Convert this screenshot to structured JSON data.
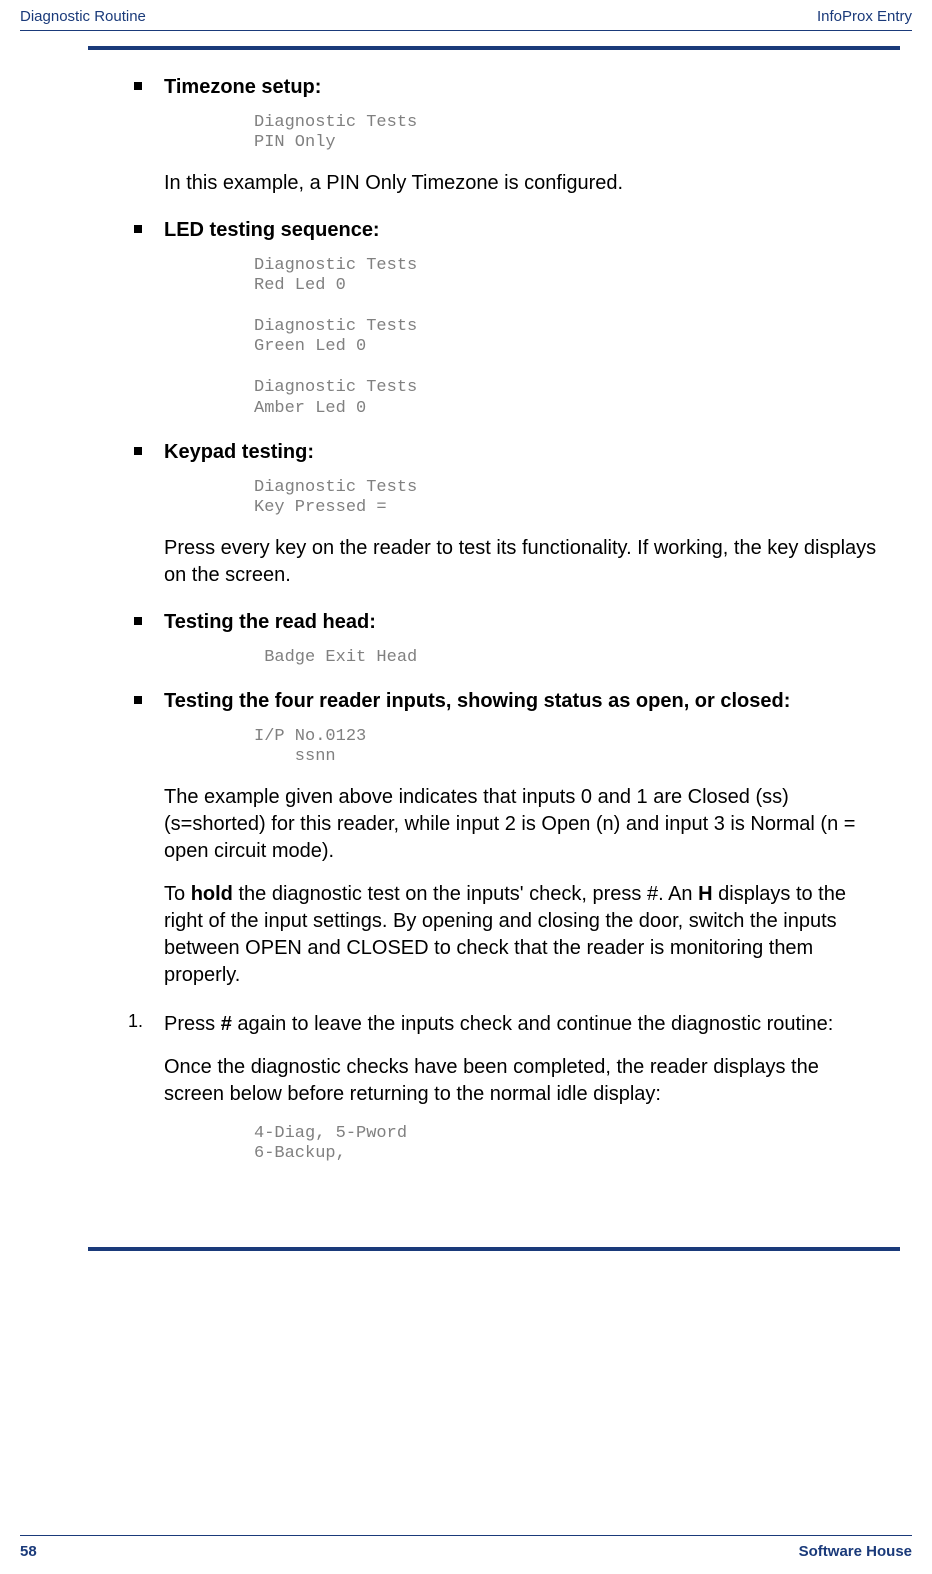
{
  "colors": {
    "brand": "#1a3a7a",
    "code": "#808080",
    "text": "#000000",
    "background": "#ffffff"
  },
  "typography": {
    "body_fontsize_pt": 15,
    "heading_fontsize_pt": 15,
    "code_fontsize_pt": 13,
    "header_footer_fontsize_pt": 11
  },
  "header": {
    "left": "Diagnostic Routine",
    "right": "InfoProx Entry"
  },
  "footer": {
    "page": "58",
    "right": "Software House"
  },
  "sections": [
    {
      "type": "bullet",
      "heading": "Timezone setup:",
      "code": "Diagnostic Tests\nPIN Only",
      "paragraphs": [
        {
          "text": "In this example, a PIN Only Timezone is configured."
        }
      ]
    },
    {
      "type": "bullet",
      "heading": "LED testing sequence:",
      "code": "Diagnostic Tests\nRed Led 0\n\nDiagnostic Tests\nGreen Led 0\n\nDiagnostic Tests\nAmber Led 0"
    },
    {
      "type": "bullet",
      "heading": "Keypad testing:",
      "code": "Diagnostic Tests\nKey Pressed =",
      "paragraphs": [
        {
          "text": "Press every key on the reader to test its functionality. If working, the key displays on the screen."
        }
      ]
    },
    {
      "type": "bullet",
      "heading": "Testing the read head:",
      "code": " Badge Exit Head"
    },
    {
      "type": "bullet",
      "heading": "Testing the four reader inputs, showing status as open, or closed:",
      "code": "I/P No.0123\n    ssnn",
      "paragraphs": [
        {
          "text": "The example given above indicates that inputs 0 and 1 are Closed (ss) (s=shorted) for this reader, while input 2 is Open (n) and input 3 is Normal (n = open circuit mode)."
        },
        {
          "html": "To <b>hold</b> the diagnostic test on the inputs' check, press #. An <b>H</b> displays to the right of the input settings. By opening and closing the door, switch the inputs between OPEN and CLOSED to check that the reader is monitoring them properly."
        }
      ]
    },
    {
      "type": "numbered",
      "marker": "1.",
      "paragraphs": [
        {
          "html": "Press <b>#</b> again to leave the inputs check and continue the diagnostic routine:"
        },
        {
          "text": "Once the diagnostic checks have been completed, the reader displays the screen below before returning to the normal idle display:"
        }
      ],
      "code_after": "4-Diag, 5-Pword\n6-Backup,"
    }
  ]
}
